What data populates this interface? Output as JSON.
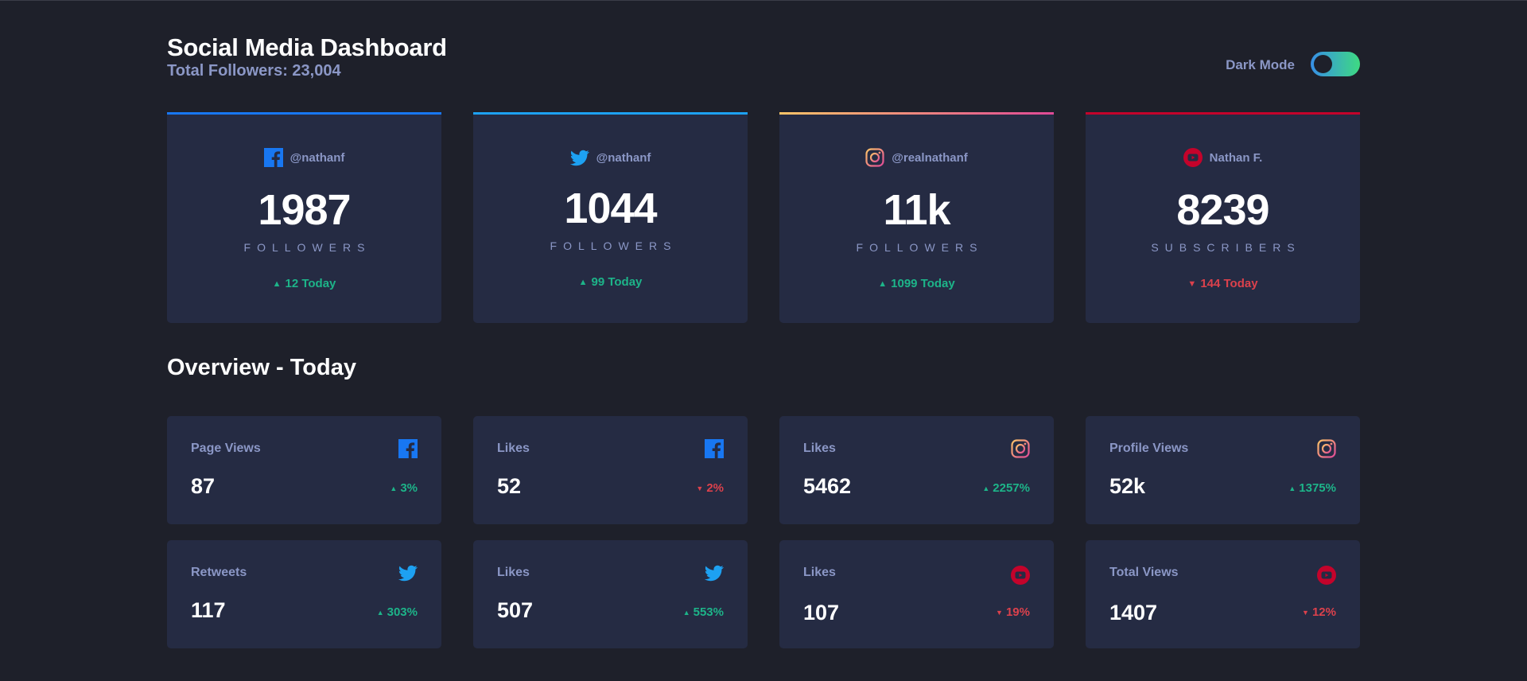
{
  "header": {
    "title": "Social Media Dashboard",
    "total_followers": "Total Followers: 23,004",
    "mode_label": "Dark Mode"
  },
  "colors": {
    "facebook": "#1877f2",
    "twitter": "#1da1f2",
    "instagram_start": "#fdc468",
    "instagram_end": "#df4996",
    "youtube": "#c4032b",
    "up": "#1db489",
    "down": "#dc414c"
  },
  "cards": [
    {
      "network": "facebook",
      "icon": "facebook-icon",
      "handle": "@nathanf",
      "count": "1987",
      "label": "FOLLOWERS",
      "change": "12 Today",
      "trend": "up"
    },
    {
      "network": "twitter",
      "icon": "twitter-icon",
      "handle": "@nathanf",
      "count": "1044",
      "label": "FOLLOWERS",
      "change": "99 Today",
      "trend": "up"
    },
    {
      "network": "instagram",
      "icon": "instagram-icon",
      "handle": "@realnathanf",
      "count": "11k",
      "label": "FOLLOWERS",
      "change": "1099 Today",
      "trend": "up"
    },
    {
      "network": "youtube",
      "icon": "youtube-icon",
      "handle": "Nathan F.",
      "count": "8239",
      "label": "SUBSCRIBERS",
      "change": "144 Today",
      "trend": "down"
    }
  ],
  "overview": {
    "title": "Overview - Today",
    "tiles": [
      {
        "label": "Page Views",
        "network": "facebook",
        "value": "87",
        "change": "3%",
        "trend": "up"
      },
      {
        "label": "Likes",
        "network": "facebook",
        "value": "52",
        "change": "2%",
        "trend": "down"
      },
      {
        "label": "Likes",
        "network": "instagram",
        "value": "5462",
        "change": "2257%",
        "trend": "up"
      },
      {
        "label": "Profile Views",
        "network": "instagram",
        "value": "52k",
        "change": "1375%",
        "trend": "up"
      },
      {
        "label": "Retweets",
        "network": "twitter",
        "value": "117",
        "change": "303%",
        "trend": "up"
      },
      {
        "label": "Likes",
        "network": "twitter",
        "value": "507",
        "change": "553%",
        "trend": "up"
      },
      {
        "label": "Likes",
        "network": "youtube",
        "value": "107",
        "change": "19%",
        "trend": "down"
      },
      {
        "label": "Total Views",
        "network": "youtube",
        "value": "1407",
        "change": "12%",
        "trend": "down"
      }
    ]
  }
}
